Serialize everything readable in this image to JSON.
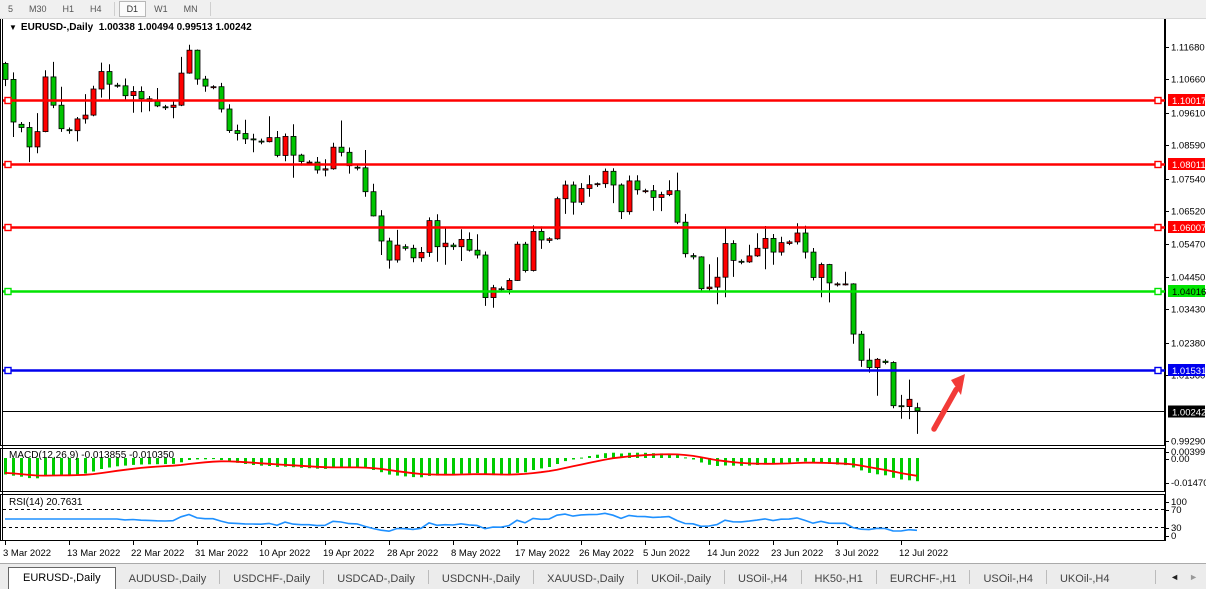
{
  "toolbar": {
    "timeframes": [
      "5",
      "M30",
      "H1",
      "H4",
      "D1",
      "W1",
      "MN"
    ],
    "active_timeframe": "D1"
  },
  "chart": {
    "title": {
      "dropdown_icon": "▼",
      "symbol": "EURUSD-,Daily",
      "ohlc": "1.00338 1.00494 0.99513 1.00242"
    },
    "price_axis_ticks": [
      "1.11680",
      "1.10660",
      "1.09610",
      "1.08590",
      "1.07540",
      "1.06520",
      "1.05470",
      "1.04450",
      "1.03430",
      "1.02380",
      "1.01360",
      "0.99290"
    ],
    "current_price": {
      "value": 1.00242,
      "label": "1.00242",
      "line_color": "#000000",
      "badge_bg": "#000000",
      "badge_text": "#ffffff"
    },
    "annotation_arrow": {
      "type": "arrow",
      "color": "#f23b38",
      "from": [
        934,
        429
      ],
      "to": [
        965,
        374
      ]
    }
  },
  "chart_data": {
    "type": "candlestick",
    "symbol": "EURUSD",
    "timeframe": "Daily",
    "title": "EURUSD-,Daily",
    "ylim": [
      0.9929,
      1.1177
    ],
    "y_tick_step": 0.0102,
    "bull_color": "#ff0000",
    "bear_color": "#00c400",
    "x_tick_every": 8,
    "x_tick_labels": [
      "3 Mar 2022",
      "13 Mar 2022",
      "22 Mar 2022",
      "31 Mar 2022",
      "10 Apr 2022",
      "19 Apr 2022",
      "28 Apr 2022",
      "8 May 2022",
      "17 May 2022",
      "26 May 2022",
      "5 Jun 2022",
      "14 Jun 2022",
      "23 Jun 2022",
      "3 Jul 2022",
      "12 Jul 2022"
    ],
    "horizontal_lines": [
      {
        "price": 1.10017,
        "label": "1.10017",
        "color": "#ff0000",
        "text_color": "#ffffff"
      },
      {
        "price": 1.08011,
        "label": "1.08011",
        "color": "#ff0000",
        "text_color": "#ffffff"
      },
      {
        "price": 1.06007,
        "label": "1.06007",
        "color": "#ff0000",
        "text_color": "#ffffff"
      },
      {
        "price": 1.04016,
        "label": "1.04016",
        "color": "#00e400",
        "text_color": "#000000"
      },
      {
        "price": 1.01531,
        "label": "1.01531",
        "color": "#0000ee",
        "text_color": "#ffffff"
      }
    ],
    "candles": [
      [
        1.1116,
        1.1121,
        1.1045,
        1.1066
      ],
      [
        1.1066,
        1.1088,
        1.0885,
        1.0932
      ],
      [
        1.0925,
        1.0932,
        1.09,
        1.0915
      ],
      [
        1.0915,
        1.0932,
        1.0806,
        1.0854
      ],
      [
        1.0854,
        1.096,
        1.0834,
        1.0902
      ],
      [
        1.0902,
        1.1095,
        1.09,
        1.1074
      ],
      [
        1.1074,
        1.1121,
        1.0976,
        1.0985
      ],
      [
        1.0985,
        1.1043,
        1.0901,
        1.0911
      ],
      [
        1.0908,
        1.0915,
        1.0895,
        1.0905
      ],
      [
        1.0905,
        1.0948,
        1.0871,
        1.0942
      ],
      [
        1.0942,
        1.102,
        1.0927,
        1.0954
      ],
      [
        1.0954,
        1.1046,
        1.095,
        1.1036
      ],
      [
        1.1036,
        1.1119,
        1.1009,
        1.1091
      ],
      [
        1.1091,
        1.1114,
        1.1003,
        1.1051
      ],
      [
        1.1048,
        1.1055,
        1.104,
        1.1046
      ],
      [
        1.1046,
        1.1069,
        1.0999,
        1.1015
      ],
      [
        1.1015,
        1.1045,
        1.0961,
        1.1028
      ],
      [
        1.1028,
        1.1044,
        1.0963,
        1.1005
      ],
      [
        1.1005,
        1.1014,
        1.0966,
        1.0997
      ],
      [
        1.0997,
        1.1039,
        1.0979,
        1.0983
      ],
      [
        1.098,
        1.0986,
        1.097,
        1.0978
      ],
      [
        1.0978,
        1.1,
        1.0944,
        1.0985
      ],
      [
        1.0985,
        1.1137,
        1.0982,
        1.1086
      ],
      [
        1.1086,
        1.1175,
        1.1084,
        1.1158
      ],
      [
        1.1158,
        1.116,
        1.1049,
        1.1067
      ],
      [
        1.1067,
        1.1077,
        1.1027,
        1.1045
      ],
      [
        1.1042,
        1.1048,
        1.1035,
        1.1043
      ],
      [
        1.1043,
        1.1055,
        1.0962,
        1.0973
      ],
      [
        1.0973,
        1.0988,
        1.0898,
        1.0905
      ],
      [
        1.0905,
        1.0924,
        1.0874,
        1.0896
      ],
      [
        1.0896,
        1.0939,
        1.0863,
        1.0879
      ],
      [
        1.0879,
        1.0895,
        1.0837,
        1.0876
      ],
      [
        1.0872,
        1.088,
        1.0862,
        1.087
      ],
      [
        1.087,
        1.095,
        1.0868,
        1.0883
      ],
      [
        1.0883,
        1.0904,
        1.0821,
        1.0827
      ],
      [
        1.0827,
        1.0896,
        1.0809,
        1.0887
      ],
      [
        1.0887,
        1.0925,
        1.0757,
        1.0828
      ],
      [
        1.0828,
        1.0832,
        1.0795,
        1.0808
      ],
      [
        1.0805,
        1.0812,
        1.0798,
        1.0806
      ],
      [
        1.0806,
        1.0822,
        1.077,
        1.0781
      ],
      [
        1.0781,
        1.0815,
        1.0761,
        1.0785
      ],
      [
        1.0785,
        1.0867,
        1.0782,
        1.0853
      ],
      [
        1.0853,
        1.0937,
        1.0824,
        1.0837
      ],
      [
        1.0837,
        1.0852,
        1.077,
        1.0795
      ],
      [
        1.079,
        1.0798,
        1.078,
        1.0788
      ],
      [
        1.0788,
        1.0844,
        1.0697,
        1.0713
      ],
      [
        1.0713,
        1.0738,
        1.0635,
        1.0637
      ],
      [
        1.0637,
        1.0655,
        1.0514,
        1.0558
      ],
      [
        1.0558,
        1.0568,
        1.0471,
        1.0498
      ],
      [
        1.0498,
        1.0593,
        1.049,
        1.0545
      ],
      [
        1.054,
        1.0548,
        1.0528,
        1.0535
      ],
      [
        1.0535,
        1.0546,
        1.0491,
        1.0505
      ],
      [
        1.0505,
        1.0539,
        1.0493,
        1.0522
      ],
      [
        1.0522,
        1.0632,
        1.0508,
        1.0622
      ],
      [
        1.0622,
        1.0642,
        1.0493,
        1.054
      ],
      [
        1.054,
        1.0599,
        1.0483,
        1.0551
      ],
      [
        1.0545,
        1.0552,
        1.053,
        1.054
      ],
      [
        1.054,
        1.0595,
        1.0495,
        1.0563
      ],
      [
        1.0563,
        1.0585,
        1.0525,
        1.0529
      ],
      [
        1.0529,
        1.0579,
        1.0503,
        1.0514
      ],
      [
        1.0514,
        1.0525,
        1.0354,
        1.038
      ],
      [
        1.038,
        1.042,
        1.0348,
        1.0411
      ],
      [
        1.0408,
        1.0415,
        1.0398,
        1.0405
      ],
      [
        1.0405,
        1.0441,
        1.039,
        1.0434
      ],
      [
        1.0434,
        1.0556,
        1.0432,
        1.0548
      ],
      [
        1.0548,
        1.0555,
        1.0459,
        1.0465
      ],
      [
        1.0465,
        1.0607,
        1.0462,
        1.0588
      ],
      [
        1.0588,
        1.0604,
        1.0533,
        1.0561
      ],
      [
        1.056,
        1.057,
        1.0552,
        1.0565
      ],
      [
        1.0565,
        1.0697,
        1.0562,
        1.0691
      ],
      [
        1.0691,
        1.0748,
        1.0643,
        1.0734
      ],
      [
        1.0734,
        1.0745,
        1.0641,
        1.068
      ],
      [
        1.068,
        1.074,
        1.0671,
        1.0723
      ],
      [
        1.0723,
        1.0765,
        1.0697,
        1.0735
      ],
      [
        1.0735,
        1.0742,
        1.0728,
        1.0738
      ],
      [
        1.0738,
        1.0786,
        1.0725,
        1.0777
      ],
      [
        1.0777,
        1.0787,
        1.0677,
        1.0734
      ],
      [
        1.0734,
        1.0739,
        1.0627,
        1.065
      ],
      [
        1.065,
        1.0764,
        1.0641,
        1.0747
      ],
      [
        1.0747,
        1.0765,
        1.0704,
        1.0719
      ],
      [
        1.0715,
        1.0722,
        1.0708,
        1.0716
      ],
      [
        1.0716,
        1.0734,
        1.0653,
        1.0695
      ],
      [
        1.0695,
        1.0713,
        1.0652,
        1.0704
      ],
      [
        1.0704,
        1.0749,
        1.0699,
        1.0716
      ],
      [
        1.0716,
        1.0773,
        1.0611,
        1.0617
      ],
      [
        1.0617,
        1.0643,
        1.0506,
        1.0518
      ],
      [
        1.0512,
        1.052,
        1.05,
        1.0508
      ],
      [
        1.0508,
        1.051,
        1.0399,
        1.0408
      ],
      [
        1.0408,
        1.0485,
        1.0397,
        1.0413
      ],
      [
        1.0413,
        1.0507,
        1.0359,
        1.0444
      ],
      [
        1.0444,
        1.0601,
        1.0381,
        1.055
      ],
      [
        1.055,
        1.056,
        1.0445,
        1.0497
      ],
      [
        1.0494,
        1.05,
        1.0485,
        1.0492
      ],
      [
        1.0492,
        1.0546,
        1.0489,
        1.0511
      ],
      [
        1.0511,
        1.0582,
        1.0508,
        1.0535
      ],
      [
        1.0535,
        1.0605,
        1.0469,
        1.0566
      ],
      [
        1.0566,
        1.058,
        1.0483,
        1.0523
      ],
      [
        1.0523,
        1.0571,
        1.0512,
        1.0553
      ],
      [
        1.055,
        1.056,
        1.0545,
        1.0555
      ],
      [
        1.0555,
        1.0614,
        1.0547,
        1.0583
      ],
      [
        1.0583,
        1.0606,
        1.0503,
        1.0523
      ],
      [
        1.0523,
        1.0536,
        1.0434,
        1.0443
      ],
      [
        1.0443,
        1.049,
        1.0381,
        1.0484
      ],
      [
        1.0484,
        1.0486,
        1.0365,
        1.0426
      ],
      [
        1.0422,
        1.0428,
        1.0415,
        1.0423
      ],
      [
        1.0423,
        1.0461,
        1.0418,
        1.0423
      ],
      [
        1.0423,
        1.0425,
        1.0235,
        1.0265
      ],
      [
        1.0265,
        1.0275,
        1.0162,
        1.0183
      ],
      [
        1.0183,
        1.022,
        1.0144,
        1.016
      ],
      [
        1.016,
        1.019,
        1.0071,
        1.0186
      ],
      [
        1.018,
        1.0186,
        1.017,
        1.0176
      ],
      [
        1.0176,
        1.018,
        1.0032,
        1.004
      ],
      [
        1.004,
        1.0074,
        0.9999,
        1.0037
      ],
      [
        1.0037,
        1.0122,
        0.9998,
        1.006
      ],
      [
        1.00338,
        1.00494,
        0.99513,
        1.00242
      ]
    ],
    "indicators": [
      {
        "name": "MACD",
        "params": [
          12,
          26,
          9
        ],
        "main_value": -0.013855,
        "signal_value": -0.01035,
        "histogram_color": "#00cc00",
        "signal_color": "#ff0000"
      },
      {
        "name": "RSI",
        "params": [
          14
        ],
        "value": 20.7631,
        "levels": [
          70,
          30
        ],
        "line_color": "#1e90ff"
      }
    ]
  },
  "macd_panel": {
    "label": "MACD(12,26,9) -0.013855 -0.010350",
    "axis_labels": [
      "0.00399",
      "0.00",
      "-0.01470"
    ]
  },
  "rsi_panel": {
    "label": "RSI(14) 20.7631",
    "axis_labels": [
      "100",
      "70",
      "30",
      "0"
    ]
  },
  "tabs": {
    "items": [
      {
        "label": "EURUSD-,Daily",
        "active": true
      },
      {
        "label": "AUDUSD-,Daily",
        "active": false
      },
      {
        "label": "USDCHF-,Daily",
        "active": false
      },
      {
        "label": "USDCAD-,Daily",
        "active": false
      },
      {
        "label": "USDCNH-,Daily",
        "active": false
      },
      {
        "label": "XAUUSD-,Daily",
        "active": false
      },
      {
        "label": "UKOil-,Daily",
        "active": false
      },
      {
        "label": "USOil-,H4",
        "active": false
      },
      {
        "label": "HK50-,H1",
        "active": false
      },
      {
        "label": "EURCHF-,H1",
        "active": false
      },
      {
        "label": "USOil-,H4",
        "active": false
      },
      {
        "label": "UKOil-,H4",
        "active": false
      }
    ],
    "scroll_left_icon": "◄",
    "scroll_right_icon": "►"
  }
}
